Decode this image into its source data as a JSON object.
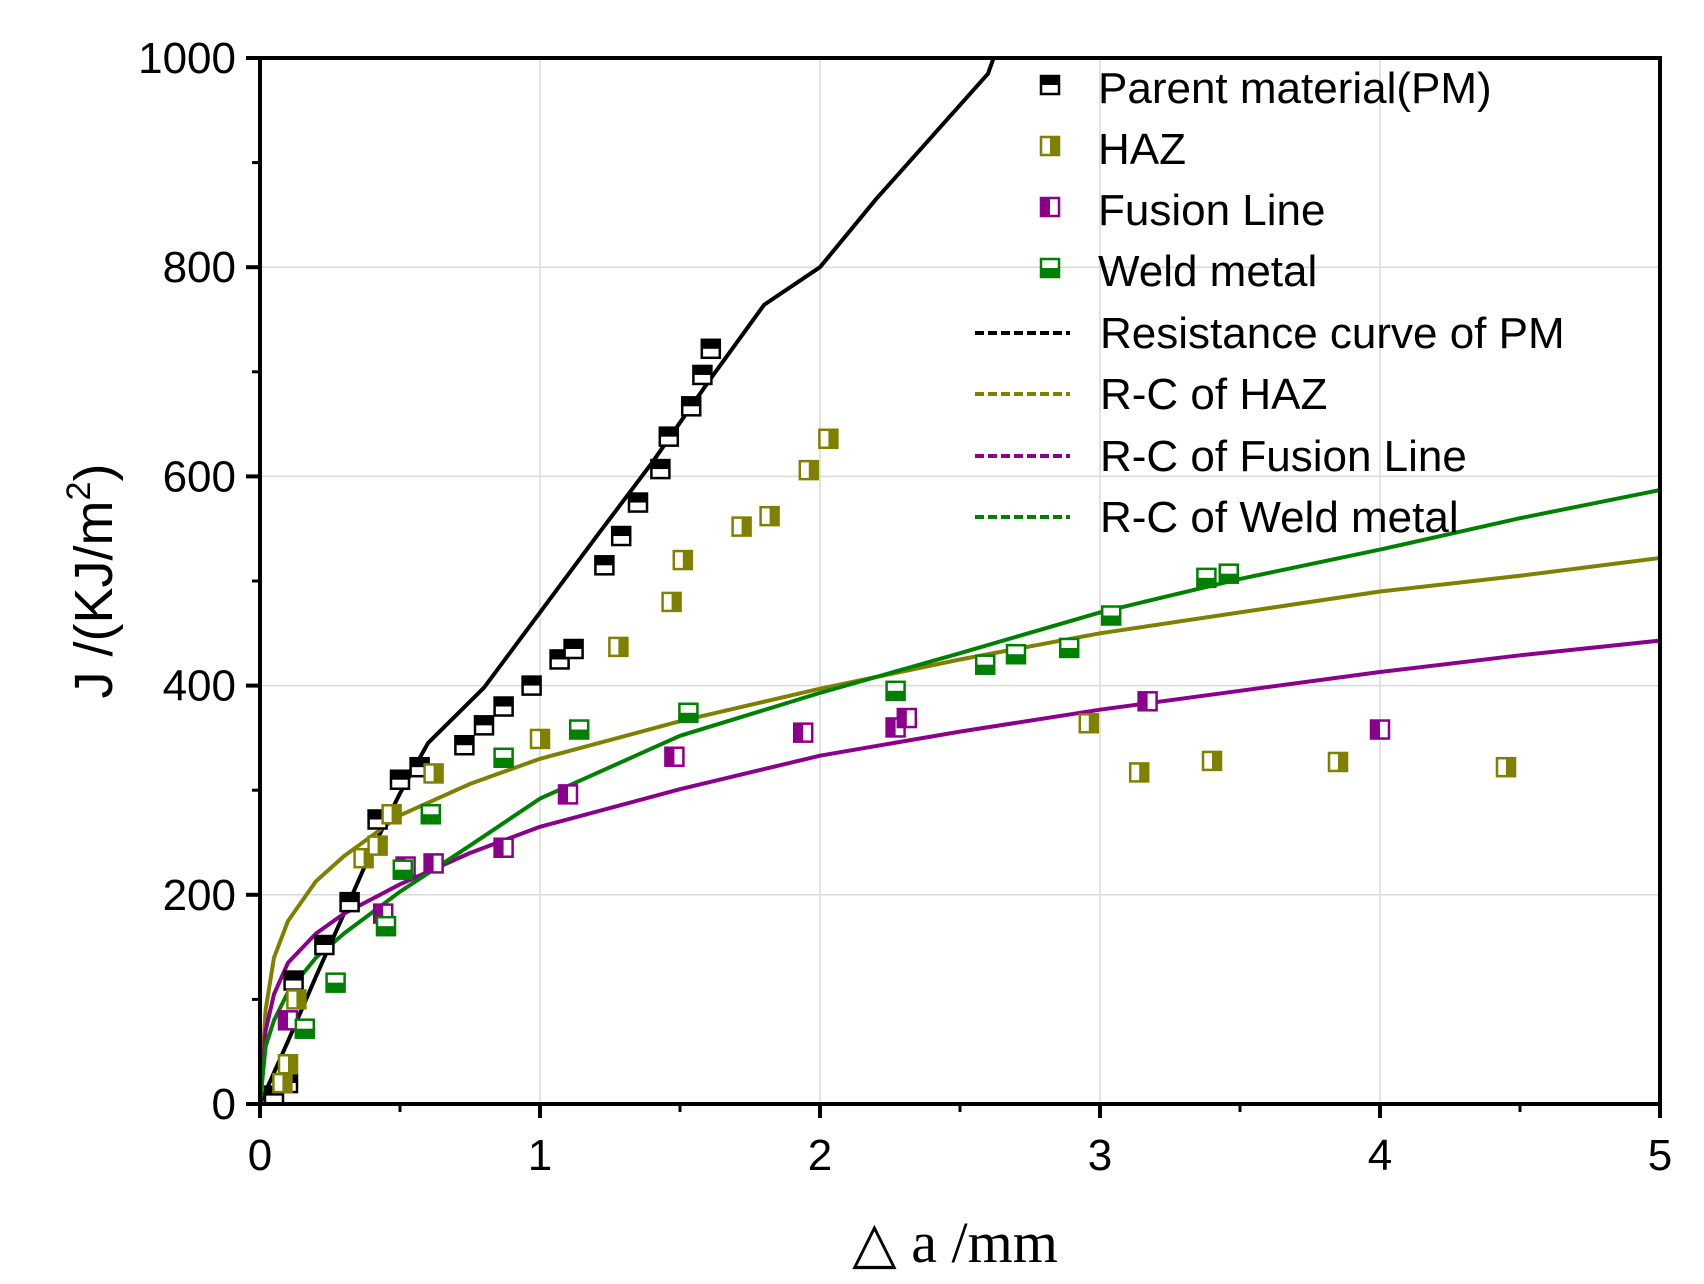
{
  "chart_data": {
    "type": "scatter",
    "title": "",
    "xlabel": "△  a /mm",
    "ylabel": {
      "main": "J /(KJ/m",
      "sup": "2",
      "close": ")"
    },
    "xlim": [
      0,
      5
    ],
    "ylim": [
      0,
      1000
    ],
    "xticks": [
      0,
      1,
      2,
      3,
      4,
      5
    ],
    "yticks": [
      0,
      200,
      400,
      600,
      800,
      1000
    ],
    "xtick_labels": [
      "0",
      "1",
      "2",
      "3",
      "4",
      "5"
    ],
    "ytick_labels": [
      "0",
      "200",
      "400",
      "600",
      "800",
      "1000"
    ],
    "grid": true,
    "legend_position": "top-right",
    "series": [
      {
        "name": "Parent material(PM)",
        "kind": "points",
        "color": "#000000",
        "marker": "half-top",
        "x": [
          0.05,
          0.1,
          0.12,
          0.23,
          0.32,
          0.42,
          0.5,
          0.57,
          0.73,
          0.8,
          0.87,
          0.97,
          1.07,
          1.12,
          1.23,
          1.29,
          1.35,
          1.43,
          1.46,
          1.54,
          1.58,
          1.61
        ],
        "y": [
          8,
          20,
          118,
          152,
          193,
          272,
          310,
          322,
          343,
          362,
          380,
          400,
          425,
          435,
          515,
          543,
          575,
          607,
          638,
          667,
          697,
          722
        ]
      },
      {
        "name": "HAZ",
        "kind": "points",
        "color": "#808000",
        "marker": "half-right",
        "x": [
          0.08,
          0.1,
          0.13,
          0.37,
          0.42,
          0.47,
          0.62,
          1.0,
          1.28,
          1.47,
          1.51,
          1.72,
          1.82,
          1.96,
          2.03,
          2.96,
          3.14,
          3.4,
          3.85,
          4.45
        ],
        "y": [
          20,
          38,
          100,
          235,
          247,
          277,
          316,
          349,
          437,
          480,
          520,
          552,
          562,
          606,
          636,
          364,
          317,
          328,
          327,
          322
        ]
      },
      {
        "name": "Fusion Line",
        "kind": "points",
        "color": "#8b008b",
        "marker": "half-left",
        "x": [
          0.1,
          0.44,
          0.52,
          0.62,
          0.87,
          1.1,
          1.48,
          1.94,
          2.27,
          2.31,
          3.17,
          4.0
        ],
        "y": [
          80,
          182,
          227,
          230,
          245,
          296,
          332,
          355,
          360,
          369,
          385,
          358
        ]
      },
      {
        "name": "Weld metal",
        "kind": "points",
        "color": "#008000",
        "marker": "half-bottom",
        "x": [
          0.16,
          0.27,
          0.45,
          0.51,
          0.61,
          0.87,
          1.14,
          1.53,
          2.27,
          2.59,
          2.7,
          2.89,
          3.04,
          3.38,
          3.46
        ],
        "y": [
          72,
          116,
          170,
          224,
          277,
          331,
          358,
          374,
          395,
          420,
          430,
          436,
          467,
          503,
          507
        ]
      },
      {
        "name": "Resistance curve of PM",
        "kind": "line",
        "color": "#000000",
        "x": [
          0.0,
          0.1,
          0.2,
          0.3,
          0.4,
          0.5,
          0.6,
          0.8,
          1.0,
          1.2,
          1.4,
          1.6,
          1.8,
          2.0,
          2.2,
          2.4,
          2.6,
          2.62
        ],
        "y": [
          0,
          60,
          122,
          182,
          243,
          297,
          345,
          398,
          470,
          542,
          613,
          690,
          764,
          800,
          865,
          925,
          985,
          1000
        ]
      },
      {
        "name": "R-C of HAZ",
        "kind": "line",
        "color": "#808000",
        "x": [
          0.0,
          0.02,
          0.05,
          0.1,
          0.2,
          0.3,
          0.5,
          0.75,
          1.0,
          1.5,
          2.0,
          2.5,
          3.0,
          3.5,
          4.0,
          4.5,
          5.0
        ],
        "y": [
          0,
          90,
          140,
          175,
          213,
          237,
          276,
          306,
          330,
          366,
          397,
          425,
          450,
          470,
          490,
          505,
          522
        ]
      },
      {
        "name": "R-C of Fusion Line",
        "kind": "line",
        "color": "#8b008b",
        "x": [
          0.0,
          0.02,
          0.05,
          0.1,
          0.2,
          0.3,
          0.5,
          0.75,
          1.0,
          1.5,
          2.0,
          2.5,
          3.0,
          3.5,
          4.0,
          4.5,
          5.0
        ],
        "y": [
          0,
          70,
          105,
          135,
          163,
          182,
          210,
          240,
          265,
          301,
          333,
          356,
          377,
          395,
          413,
          429,
          443
        ]
      },
      {
        "name": "R-C of Weld metal",
        "kind": "line",
        "color": "#008000",
        "x": [
          0.0,
          0.02,
          0.05,
          0.1,
          0.2,
          0.3,
          0.5,
          0.75,
          1.0,
          1.5,
          2.0,
          2.5,
          3.0,
          3.5,
          4.0,
          4.5,
          5.0
        ],
        "y": [
          0,
          55,
          80,
          107,
          140,
          163,
          203,
          247,
          292,
          352,
          393,
          431,
          470,
          502,
          530,
          560,
          587
        ]
      }
    ]
  }
}
